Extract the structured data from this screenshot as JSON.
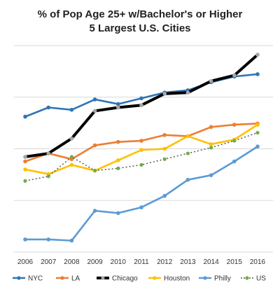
{
  "chart_data": {
    "type": "line",
    "title": "% of Pop Age 25+ w/Bachelor's or Higher",
    "subtitle": "5 Largest U.S. Cities",
    "categories": [
      "2006",
      "2007",
      "2008",
      "2009",
      "2010",
      "2011",
      "2012",
      "2013",
      "2014",
      "2015",
      "2016"
    ],
    "ylim": [
      21,
      39
    ],
    "grid": true,
    "legend_position": "bottom",
    "series": [
      {
        "name": "NYC",
        "color": "#2e75b6",
        "style": "solid-markers",
        "values": [
          32.8,
          33.6,
          33.4,
          34.3,
          33.9,
          34.4,
          34.9,
          35.1,
          35.8,
          36.3,
          36.5
        ]
      },
      {
        "name": "LA",
        "color": "#ed7d31",
        "style": "solid-markers",
        "values": [
          28.9,
          29.6,
          29.1,
          30.3,
          30.6,
          30.7,
          31.2,
          31.1,
          31.9,
          32.1,
          32.2
        ]
      },
      {
        "name": "Chicago",
        "color": "#000000",
        "marker_color": "#a6a6a6",
        "style": "thick-markers",
        "values": [
          29.3,
          29.6,
          30.9,
          33.3,
          33.6,
          33.8,
          34.8,
          34.9,
          35.9,
          36.4,
          38.2
        ]
      },
      {
        "name": "Houston",
        "color": "#ffc000",
        "style": "solid-markers",
        "values": [
          28.2,
          27.8,
          28.6,
          28.1,
          29.0,
          29.9,
          30.0,
          31.1,
          30.4,
          30.8,
          32.1
        ]
      },
      {
        "name": "Philly",
        "color": "#5b9bd5",
        "style": "solid-markers",
        "values": [
          22.1,
          22.1,
          22.0,
          24.6,
          24.4,
          24.9,
          25.9,
          27.3,
          27.7,
          28.9,
          30.2
        ]
      },
      {
        "name": "US",
        "color": "#70ad47",
        "line_color": "#595959",
        "style": "dotted-markers",
        "values": [
          27.2,
          27.6,
          29.3,
          28.1,
          28.3,
          28.6,
          29.1,
          29.6,
          30.1,
          30.7,
          31.4
        ]
      }
    ]
  }
}
